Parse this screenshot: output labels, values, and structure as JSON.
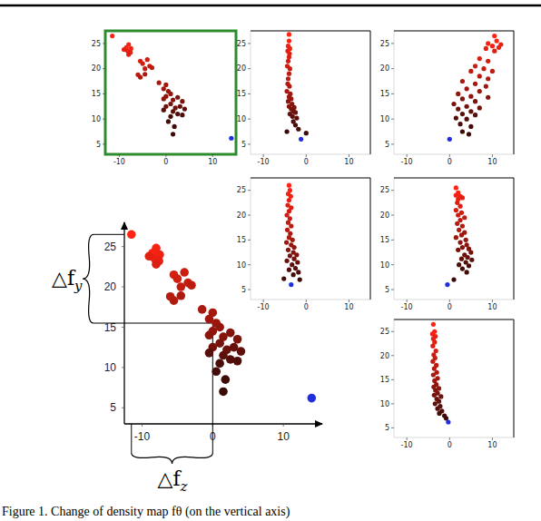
{
  "caption": "Figure 1. Change of density map fθ (on the vertical axis)",
  "chart_data": [
    {
      "type": "scatter",
      "xlim": [
        -13,
        15
      ],
      "ylim": [
        3,
        27.5
      ],
      "xticks": [
        -10,
        0,
        10
      ],
      "yticks": [
        5,
        10,
        15,
        20,
        25
      ],
      "series": [
        {
          "color": "#ff2414",
          "marker": "circle",
          "x": [
            -11.5,
            -8.5,
            -8,
            -7.5,
            -8.2,
            -7.6,
            -9,
            -8,
            -5.5,
            -5,
            -4,
            -3.5,
            -4.5,
            -3,
            -6,
            -5.5,
            -4.5,
            -1.5,
            0,
            -0.5,
            0.5,
            1,
            0,
            -0.5,
            1.5,
            2.5,
            3.5,
            1,
            0,
            2,
            3,
            4,
            1.5,
            -0.5,
            2.5,
            3.5,
            1,
            0.5,
            1.8,
            1.5
          ],
          "values": [
            26.5,
            24.2,
            24.8,
            24,
            23.5,
            23.2,
            23.8,
            22.8,
            21.5,
            21,
            21.8,
            20.5,
            20,
            20.2,
            18.8,
            18.3,
            18.9,
            17.2,
            16.8,
            16,
            15.5,
            15,
            14.5,
            14,
            13.8,
            14.3,
            13.5,
            13,
            12.5,
            12.2,
            12.5,
            12,
            11.5,
            11.8,
            11,
            10.8,
            10.5,
            9.5,
            8.5,
            7
          ]
        },
        {
          "color": "#1f2fe0",
          "marker": "circle",
          "x": [
            14
          ],
          "values": [
            6.2
          ]
        }
      ]
    },
    {
      "type": "scatter",
      "xlim": [
        -13,
        15
      ],
      "ylim": [
        3,
        27.5
      ],
      "xticks": [
        -10,
        0,
        10
      ],
      "yticks": [
        5,
        10,
        15,
        20,
        25
      ],
      "series": [
        {
          "color": "#ff2414",
          "marker": "circle",
          "x": [
            -4,
            -4,
            -4.2,
            -3.8,
            -4.3,
            -3.9,
            -4,
            -4.2,
            -4.4,
            -3.8,
            -4,
            -4.2,
            -4.3,
            -3.9,
            -4.5,
            -3.7,
            -4,
            -3.5,
            -4.2,
            -3.3,
            -4,
            -2.8,
            -3.5,
            -3,
            -2.5,
            -3.8,
            -3.2,
            -2.2,
            -3,
            -2.5,
            -1.8,
            0,
            -4.5
          ],
          "values": [
            26.8,
            25.5,
            24.5,
            24,
            23.5,
            23,
            22.3,
            21.5,
            20.5,
            20,
            19,
            18,
            17,
            16.5,
            15.5,
            15,
            14.4,
            14,
            13.5,
            13,
            12.5,
            12.3,
            12,
            11.5,
            11.3,
            11,
            10.5,
            10.2,
            9.5,
            8.8,
            8,
            7.2,
            7.5
          ]
        },
        {
          "color": "#1f2fe0",
          "marker": "circle",
          "x": [
            -1.2
          ],
          "values": [
            6
          ]
        }
      ]
    },
    {
      "type": "scatter",
      "xlim": [
        -13,
        15
      ],
      "ylim": [
        3,
        27.5
      ],
      "xticks": [
        -10,
        0,
        10
      ],
      "yticks": [
        5,
        10,
        15,
        20,
        25
      ],
      "series": [
        {
          "color": "#ff2414",
          "marker": "circle",
          "x": [
            10.5,
            11,
            9,
            10,
            11.5,
            12,
            8.5,
            10.5,
            7,
            9,
            6,
            8,
            10,
            5,
            7,
            9,
            3,
            6,
            8.5,
            4,
            7,
            2,
            5,
            9,
            3,
            6,
            1,
            4,
            7,
            2,
            5,
            3,
            6,
            1.5,
            4,
            2.5,
            5,
            3,
            4.5
          ],
          "values": [
            26.5,
            25.5,
            25,
            24.5,
            24.2,
            24.8,
            24,
            23.5,
            22,
            21.5,
            20.5,
            20,
            19.5,
            19.5,
            18.5,
            18,
            17.5,
            17,
            16.5,
            16,
            15.5,
            15,
            14.5,
            14.3,
            14,
            13.5,
            13,
            12.5,
            12.2,
            12,
            11.5,
            11,
            10.8,
            10.2,
            10,
            9,
            8.5,
            7.5,
            7
          ]
        },
        {
          "color": "#1f2fe0",
          "marker": "circle",
          "x": [
            0
          ],
          "values": [
            6
          ]
        }
      ]
    },
    {
      "type": "scatter",
      "xlim": [
        -13,
        15
      ],
      "ylim": [
        3,
        27.5
      ],
      "xticks": [
        -10,
        0,
        10
      ],
      "yticks": [
        5,
        10,
        15,
        20,
        25
      ],
      "series": [
        {
          "color": "#ff2414",
          "marker": "circle",
          "x": [
            -4,
            -3.8,
            -4.2,
            -3.6,
            -4,
            -4.3,
            -3.5,
            -4,
            -4.5,
            -3.8,
            -4.2,
            -3.5,
            -4.4,
            -3.7,
            -4,
            -3.2,
            -4.6,
            -3.5,
            -2.8,
            -4.2,
            -3,
            -2.2,
            -3.8,
            -2.8,
            -4.5,
            -2,
            -3.3,
            -2.5,
            -4,
            -1.8,
            -3,
            -5.2,
            -1.5
          ],
          "values": [
            26,
            25,
            24.3,
            23.8,
            23,
            22,
            21.5,
            20.8,
            20,
            19.3,
            18.5,
            17.8,
            17,
            16.3,
            15.5,
            15,
            14.5,
            14,
            13.5,
            13,
            12.5,
            12,
            11.8,
            11.2,
            10.8,
            10.5,
            10,
            9.3,
            9,
            8.5,
            8,
            7.2,
            7
          ]
        },
        {
          "color": "#1f2fe0",
          "marker": "circle",
          "x": [
            -3.5
          ],
          "values": [
            6
          ]
        }
      ]
    },
    {
      "type": "scatter",
      "xlim": [
        -13,
        15
      ],
      "ylim": [
        3,
        27.5
      ],
      "xticks": [
        -10,
        0,
        10
      ],
      "yticks": [
        5,
        10,
        15,
        20,
        25
      ],
      "series": [
        {
          "color": "#ff2414",
          "marker": "circle",
          "x": [
            1.5,
            2,
            1.5,
            2.5,
            2,
            3,
            1.8,
            2.5,
            1.5,
            2.8,
            2,
            3.5,
            2.5,
            1.8,
            3,
            2.2,
            3.5,
            2.8,
            1.5,
            3.8,
            2.5,
            4,
            3,
            4.5,
            2,
            5,
            3.5,
            4.2,
            2.8,
            5.2,
            3.8,
            2.2,
            4.5,
            3,
            4,
            1
          ],
          "values": [
            25.5,
            24.5,
            24,
            23.8,
            23.2,
            23.5,
            22.5,
            21.8,
            21,
            20.5,
            20,
            19.5,
            19,
            18.3,
            17.8,
            17,
            16.5,
            16,
            15.5,
            15,
            14.5,
            14,
            13.5,
            13.2,
            13,
            12.5,
            12,
            11.5,
            11.2,
            11,
            10.5,
            10,
            9.8,
            9.2,
            8.5,
            7
          ]
        },
        {
          "color": "#1f2fe0",
          "marker": "circle",
          "x": [
            -0.5
          ],
          "values": [
            6
          ]
        }
      ]
    },
    {
      "type": "scatter",
      "xlim": [
        -13,
        15
      ],
      "ylim": [
        3,
        27.5
      ],
      "xticks": [
        -10,
        0,
        10
      ],
      "yticks": [
        5,
        10,
        15,
        20,
        25
      ],
      "series": [
        {
          "color": "#ff2414",
          "marker": "circle",
          "x": [
            -3.8,
            -3.5,
            -4,
            -3.3,
            -3.8,
            -3.5,
            -3.9,
            -3.2,
            -3.7,
            -3.4,
            -3.9,
            -3.1,
            -3.6,
            -3,
            -3.8,
            -2.8,
            -3.5,
            -3.1,
            -3.7,
            -2.5,
            -3.3,
            -2.8,
            -3.6,
            -2,
            -3,
            -2.5,
            -3.4,
            -2.2,
            -2.8,
            -1.8,
            -2.4,
            -1.2,
            -0.8
          ],
          "values": [
            26.5,
            25,
            24.5,
            24,
            23.5,
            22.8,
            22,
            21,
            20.2,
            19.5,
            18.8,
            18,
            17.3,
            16.5,
            16,
            15.3,
            14.8,
            14,
            13.5,
            13.2,
            12.8,
            12.2,
            11.8,
            11.5,
            11,
            10.5,
            10,
            9.5,
            9,
            8.5,
            8,
            7.5,
            7
          ]
        },
        {
          "color": "#1f2fe0",
          "marker": "circle",
          "x": [
            -0.3
          ],
          "values": [
            6.2
          ]
        }
      ]
    },
    {
      "type": "scatter",
      "xlim": [
        -12.5,
        15.5
      ],
      "ylim": [
        3,
        28
      ],
      "xticks": [
        -10,
        0,
        10
      ],
      "yticks": [
        5,
        10,
        15,
        20,
        25
      ],
      "annotations": [
        {
          "text": "△f",
          "sub": "y",
          "y": [
            15.5,
            26.5
          ]
        },
        {
          "text": "△f",
          "sub": "z",
          "x": [
            -11.5,
            0
          ]
        }
      ],
      "series": [
        {
          "color": "#ff2414",
          "marker": "circle",
          "x": [
            -11.5,
            -8.5,
            -8,
            -7.5,
            -8.2,
            -7.6,
            -9,
            -8,
            -5.5,
            -5,
            -4,
            -3.5,
            -4.5,
            -3,
            -6,
            -5.5,
            -4.5,
            -1.5,
            0,
            -0.5,
            0.5,
            1,
            0,
            -0.5,
            1.5,
            2.5,
            3.5,
            1,
            0,
            2,
            3,
            4,
            1.5,
            -0.5,
            2.5,
            3.5,
            1,
            0.5,
            1.8,
            1.5
          ],
          "values": [
            26.5,
            24.2,
            24.8,
            24,
            23.5,
            23.2,
            23.8,
            22.8,
            21.5,
            21,
            21.8,
            20.5,
            20,
            20.2,
            18.8,
            18.3,
            18.9,
            17.2,
            16.8,
            16,
            15.5,
            15,
            14.5,
            14,
            13.8,
            14.3,
            13.5,
            13,
            12.5,
            12.2,
            12.5,
            12,
            11.5,
            11.8,
            11,
            10.8,
            10.5,
            9.5,
            8.5,
            7
          ]
        },
        {
          "color": "#1f2fe0",
          "marker": "circle",
          "x": [
            14
          ],
          "values": [
            6.2
          ]
        }
      ]
    }
  ]
}
